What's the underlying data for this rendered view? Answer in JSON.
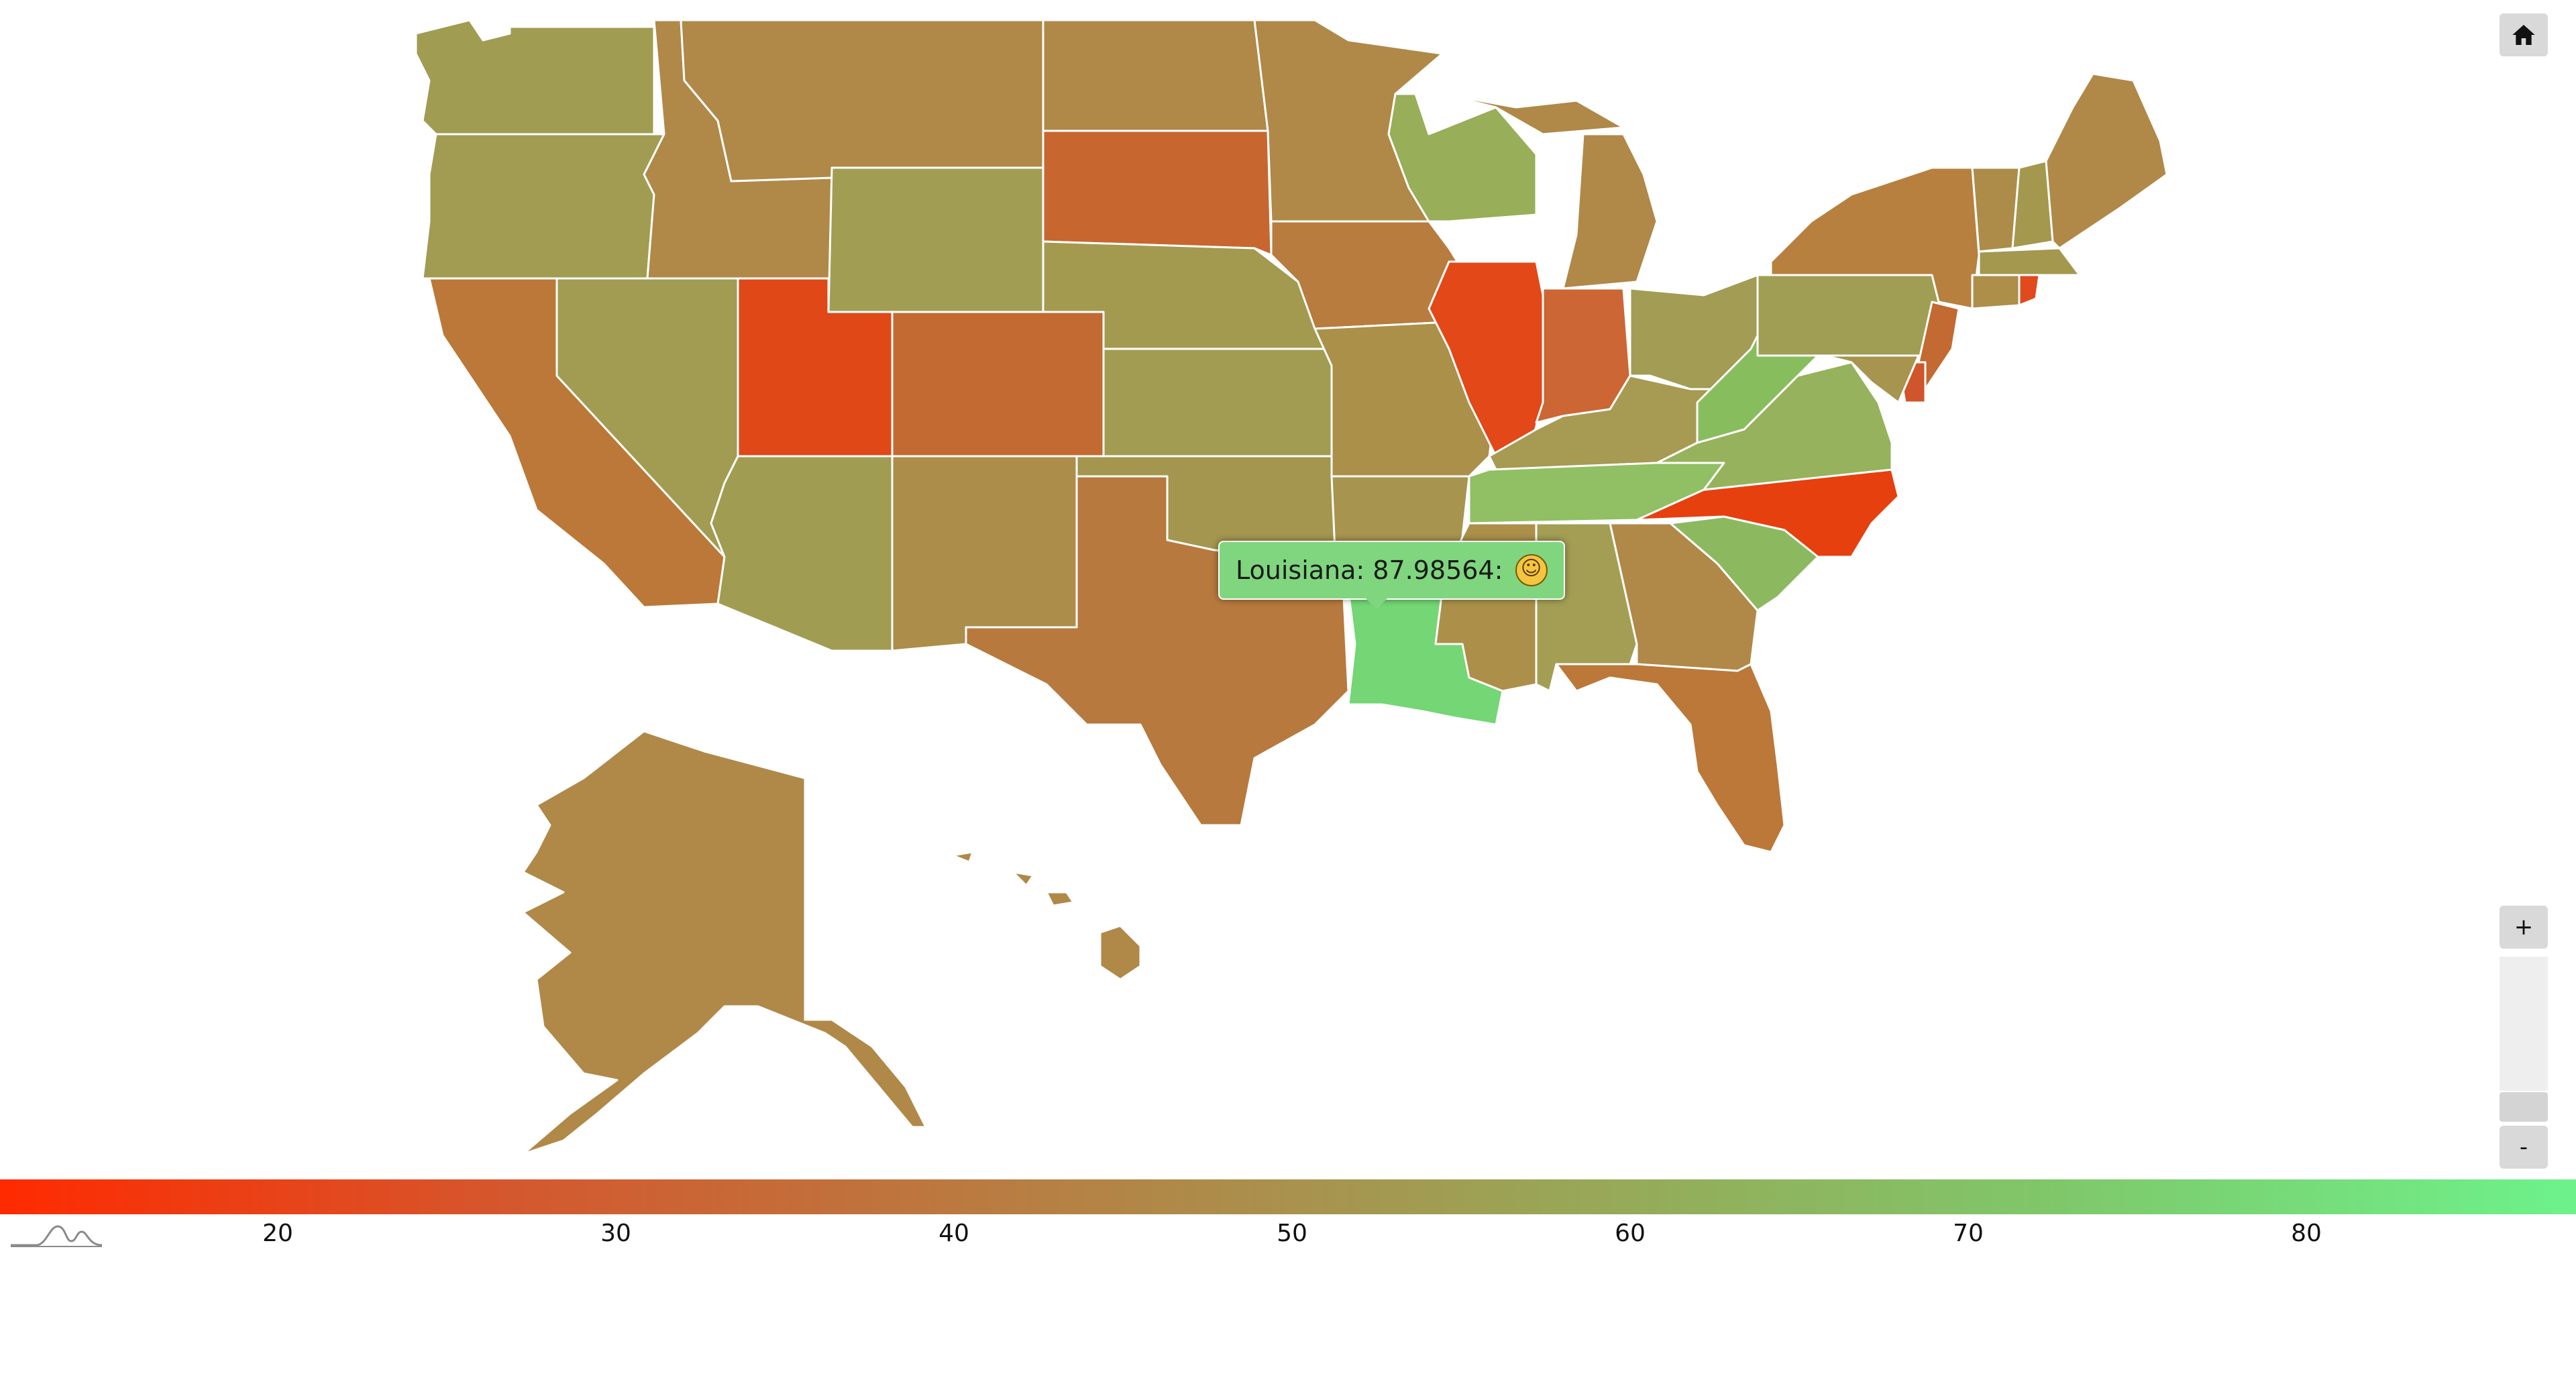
{
  "tooltip": {
    "state": "Louisiana",
    "value": "87.98564",
    "text": "Louisiana: 87.98564:",
    "emoji_icon": "grinning-face-icon"
  },
  "controls": {
    "home_icon": "home-icon",
    "zoom_in_label": "+",
    "zoom_out_label": "-"
  },
  "legend": {
    "ticks": [
      "20",
      "30",
      "40",
      "50",
      "60",
      "70",
      "80"
    ],
    "min_color": "#ff2a00",
    "max_color": "#6df28b",
    "icon": "distribution-curve-icon"
  },
  "map": {
    "states": [
      {
        "name": "Washington",
        "color": "#a09c52"
      },
      {
        "name": "Oregon",
        "color": "#a19c52"
      },
      {
        "name": "California",
        "color": "#bb7838"
      },
      {
        "name": "Idaho",
        "color": "#b08848"
      },
      {
        "name": "Nevada",
        "color": "#a19c52"
      },
      {
        "name": "Utah",
        "color": "#e04818"
      },
      {
        "name": "Arizona",
        "color": "#a09c52"
      },
      {
        "name": "Montana",
        "color": "#b08848"
      },
      {
        "name": "Wyoming",
        "color": "#a19e54"
      },
      {
        "name": "Colorado",
        "color": "#c26a32"
      },
      {
        "name": "New Mexico",
        "color": "#ac8d4a"
      },
      {
        "name": "North Dakota",
        "color": "#b08848"
      },
      {
        "name": "South Dakota",
        "color": "#c86630"
      },
      {
        "name": "Nebraska",
        "color": "#a39a50"
      },
      {
        "name": "Kansas",
        "color": "#a19c52"
      },
      {
        "name": "Oklahoma",
        "color": "#a4964e"
      },
      {
        "name": "Texas",
        "color": "#b7793e"
      },
      {
        "name": "Minnesota",
        "color": "#b08848"
      },
      {
        "name": "Iowa",
        "color": "#b77c3e"
      },
      {
        "name": "Missouri",
        "color": "#ab904a"
      },
      {
        "name": "Arkansas",
        "color": "#a7944e"
      },
      {
        "name": "Louisiana",
        "color": "#74d675"
      },
      {
        "name": "Wisconsin",
        "color": "#98ae58"
      },
      {
        "name": "Illinois",
        "color": "#e24818"
      },
      {
        "name": "Michigan",
        "color": "#b08848"
      },
      {
        "name": "Indiana",
        "color": "#cc6634"
      },
      {
        "name": "Ohio",
        "color": "#a39c54"
      },
      {
        "name": "Kentucky",
        "color": "#a79a52"
      },
      {
        "name": "Tennessee",
        "color": "#90c063"
      },
      {
        "name": "Mississippi",
        "color": "#ac904a"
      },
      {
        "name": "Alabama",
        "color": "#a39e54"
      },
      {
        "name": "Georgia",
        "color": "#b08848"
      },
      {
        "name": "Florida",
        "color": "#bb7838"
      },
      {
        "name": "South Carolina",
        "color": "#8cb960"
      },
      {
        "name": "North Carolina",
        "color": "#e6400e"
      },
      {
        "name": "Virginia",
        "color": "#96b25c"
      },
      {
        "name": "West Virginia",
        "color": "#88bd5e"
      },
      {
        "name": "Pennsylvania",
        "color": "#a09e54"
      },
      {
        "name": "New York",
        "color": "#b7803e"
      },
      {
        "name": "Maine",
        "color": "#b08848"
      },
      {
        "name": "Vermont",
        "color": "#ad8c4a"
      },
      {
        "name": "New Hampshire",
        "color": "#a3984e"
      },
      {
        "name": "Massachusetts",
        "color": "#a3984e"
      },
      {
        "name": "Connecticut",
        "color": "#ad8f4a"
      },
      {
        "name": "Rhode Island",
        "color": "#e04a1c"
      },
      {
        "name": "New Jersey",
        "color": "#c26a32"
      },
      {
        "name": "Delaware",
        "color": "#d0552a"
      },
      {
        "name": "Maryland",
        "color": "#a7944e"
      },
      {
        "name": "Alaska",
        "color": "#b08848"
      },
      {
        "name": "Hawaii",
        "color": "#b08848"
      }
    ]
  }
}
